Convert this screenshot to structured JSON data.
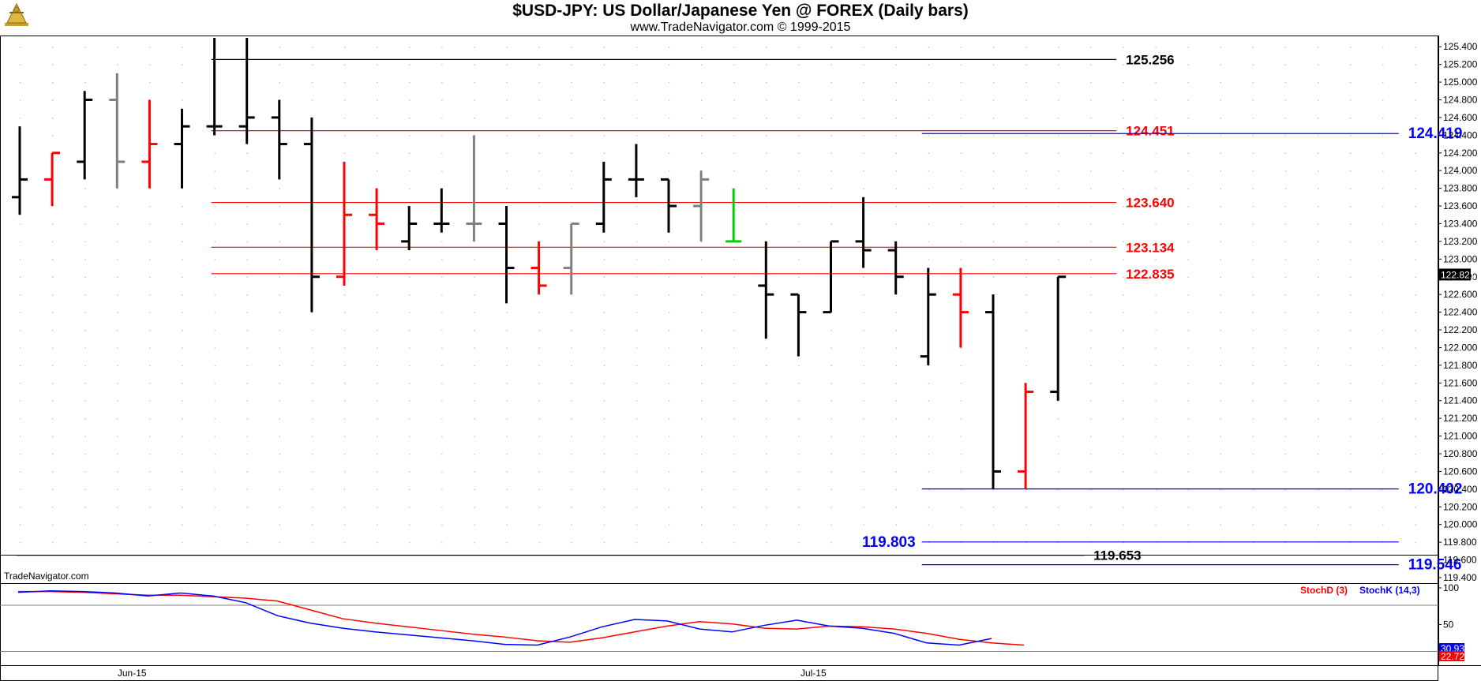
{
  "header": {
    "title": "$USD-JPY:  US Dollar/Japanese Yen @ FOREX  (Daily bars)",
    "subtitle": "www.TradeNavigator.com © 1999-2015"
  },
  "watermark": "TradeNavigator.com",
  "last_price": "122.821",
  "stoch_values": {
    "k": "30.93",
    "d": "22.72"
  },
  "colors": {
    "up": "#000000",
    "down": "#ff0000",
    "neutral": "#808080",
    "highlight": "#00d000",
    "blue": "#0000ff"
  },
  "chart_data": [
    {
      "type": "ohlc",
      "ylim": [
        119.4,
        125.5
      ],
      "yticks": [
        "125.400",
        "125.200",
        "125.000",
        "124.800",
        "124.600",
        "124.400",
        "124.200",
        "124.000",
        "123.800",
        "123.600",
        "123.400",
        "123.200",
        "123.000",
        "122.800",
        "122.600",
        "122.400",
        "122.200",
        "122.000",
        "121.800",
        "121.600",
        "121.400",
        "121.200",
        "121.000",
        "120.800",
        "120.600",
        "120.400",
        "120.200",
        "120.000",
        "119.800",
        "119.600",
        "119.400"
      ],
      "xlabels": [
        {
          "label": "Jun-15",
          "bar": 2
        },
        {
          "label": "Jul-15",
          "bar": 23
        }
      ],
      "bars": [
        {
          "o": 123.7,
          "h": 124.5,
          "l": 123.5,
          "c": 123.9,
          "color": "black"
        },
        {
          "o": 123.9,
          "h": 124.2,
          "l": 123.6,
          "c": 124.2,
          "color": "red"
        },
        {
          "o": 124.1,
          "h": 124.9,
          "l": 123.9,
          "c": 124.8,
          "color": "black"
        },
        {
          "o": 124.8,
          "h": 125.1,
          "l": 123.8,
          "c": 124.1,
          "color": "gray"
        },
        {
          "o": 124.1,
          "h": 124.8,
          "l": 123.8,
          "c": 124.3,
          "color": "red"
        },
        {
          "o": 124.3,
          "h": 124.7,
          "l": 123.8,
          "c": 124.5,
          "color": "black"
        },
        {
          "o": 124.5,
          "h": 125.5,
          "l": 124.4,
          "c": 124.5,
          "color": "black"
        },
        {
          "o": 124.5,
          "h": 125.5,
          "l": 124.3,
          "c": 124.6,
          "color": "black"
        },
        {
          "o": 124.6,
          "h": 124.8,
          "l": 123.9,
          "c": 124.3,
          "color": "black"
        },
        {
          "o": 124.3,
          "h": 124.6,
          "l": 122.4,
          "c": 122.8,
          "color": "black"
        },
        {
          "o": 122.8,
          "h": 124.1,
          "l": 122.7,
          "c": 123.5,
          "color": "red"
        },
        {
          "o": 123.5,
          "h": 123.8,
          "l": 123.1,
          "c": 123.4,
          "color": "red"
        },
        {
          "o": 123.2,
          "h": 123.6,
          "l": 123.1,
          "c": 123.4,
          "color": "black"
        },
        {
          "o": 123.4,
          "h": 123.8,
          "l": 123.3,
          "c": 123.4,
          "color": "black"
        },
        {
          "o": 123.4,
          "h": 124.4,
          "l": 123.2,
          "c": 123.4,
          "color": "gray"
        },
        {
          "o": 123.4,
          "h": 123.6,
          "l": 122.5,
          "c": 122.9,
          "color": "black"
        },
        {
          "o": 122.9,
          "h": 123.2,
          "l": 122.6,
          "c": 122.7,
          "color": "red"
        },
        {
          "o": 122.9,
          "h": 123.4,
          "l": 122.6,
          "c": 123.4,
          "color": "gray"
        },
        {
          "o": 123.4,
          "h": 124.1,
          "l": 123.3,
          "c": 123.9,
          "color": "black"
        },
        {
          "o": 123.9,
          "h": 124.3,
          "l": 123.7,
          "c": 123.9,
          "color": "black"
        },
        {
          "o": 123.9,
          "h": 123.9,
          "l": 123.3,
          "c": 123.6,
          "color": "black"
        },
        {
          "o": 123.6,
          "h": 124.0,
          "l": 123.2,
          "c": 123.9,
          "color": "gray"
        },
        {
          "o": 123.2,
          "h": 123.8,
          "l": 123.2,
          "c": 123.2,
          "color": "green"
        },
        {
          "o": 122.7,
          "h": 123.2,
          "l": 122.1,
          "c": 122.6,
          "color": "black"
        },
        {
          "o": 122.6,
          "h": 122.6,
          "l": 121.9,
          "c": 122.4,
          "color": "black"
        },
        {
          "o": 122.4,
          "h": 123.2,
          "l": 122.4,
          "c": 123.2,
          "color": "black"
        },
        {
          "o": 123.2,
          "h": 123.7,
          "l": 122.9,
          "c": 123.1,
          "color": "black"
        },
        {
          "o": 123.1,
          "h": 123.2,
          "l": 122.6,
          "c": 122.8,
          "color": "black"
        },
        {
          "o": 121.9,
          "h": 122.9,
          "l": 121.8,
          "c": 122.6,
          "color": "black"
        },
        {
          "o": 122.6,
          "h": 122.9,
          "l": 122.0,
          "c": 122.4,
          "color": "red"
        },
        {
          "o": 122.4,
          "h": 122.6,
          "l": 120.4,
          "c": 120.6,
          "color": "black"
        },
        {
          "o": 120.6,
          "h": 121.6,
          "l": 120.4,
          "c": 121.5,
          "color": "red"
        },
        {
          "o": 121.5,
          "h": 122.8,
          "l": 121.4,
          "c": 122.8,
          "color": "black"
        }
      ],
      "levels": [
        {
          "label": "125.256",
          "value": 125.256,
          "color": "#000000",
          "from_bar": 6,
          "to_bar": 33.8,
          "label_at": "line_end"
        },
        {
          "label": "124.451",
          "value": 124.451,
          "color": "#ff0000",
          "from_bar": 6,
          "to_bar": 33.8,
          "label_at": "line_end"
        },
        {
          "label": "123.640",
          "value": 123.64,
          "color": "#ff0000",
          "from_bar": 6,
          "to_bar": 33.8,
          "label_at": "line_end"
        },
        {
          "label": "123.134",
          "value": 123.134,
          "color": "#ff0000",
          "from_bar": 6,
          "to_bar": 33.8,
          "label_at": "line_end"
        },
        {
          "label": "122.835",
          "value": 122.835,
          "color": "#ff0000",
          "from_bar": 6,
          "to_bar": 33.8,
          "label_at": "line_end"
        },
        {
          "label": "124.419",
          "value": 124.419,
          "color": "#0000ff",
          "from_bar": 27.9,
          "to_bar": 42.5,
          "label_at": "line_end"
        },
        {
          "label": "120.402",
          "value": 120.402,
          "color": "#0000ff",
          "from_bar": 27.9,
          "to_bar": 42.5,
          "label_at": "line_end"
        },
        {
          "label": "119.803",
          "value": 119.803,
          "color": "#0000ff",
          "from_bar": 27.9,
          "to_bar": 42.5,
          "label_at": "line_start"
        },
        {
          "label": "119.653",
          "value": 119.653,
          "color": "#000000",
          "from_bar": 0,
          "to_bar": 32.8,
          "label_at": "line_end"
        },
        {
          "label": "119.546",
          "value": 119.546,
          "color": "#0000ff",
          "from_bar": 27.9,
          "to_bar": 42.5,
          "label_at": "line_end"
        }
      ]
    },
    {
      "type": "line",
      "ylim": [
        0,
        100
      ],
      "yticks": [
        "100",
        "50"
      ],
      "series": [
        {
          "name": "StochD (3)",
          "color": "#ff0000",
          "values": [
            95,
            95,
            94,
            92,
            90,
            90,
            88,
            86,
            82,
            70,
            58,
            52,
            47,
            42,
            37,
            33,
            28,
            26,
            32,
            40,
            48,
            54,
            51,
            45,
            44,
            48,
            47,
            44,
            38,
            30,
            25,
            22
          ]
        },
        {
          "name": "StochK (14,3)",
          "color": "#0000ff",
          "values": [
            94,
            96,
            95,
            93,
            89,
            93,
            89,
            80,
            62,
            52,
            45,
            40,
            36,
            32,
            28,
            23,
            22,
            33,
            47,
            57,
            55,
            44,
            40,
            49,
            56,
            48,
            45,
            38,
            25,
            22,
            31
          ]
        }
      ]
    }
  ]
}
